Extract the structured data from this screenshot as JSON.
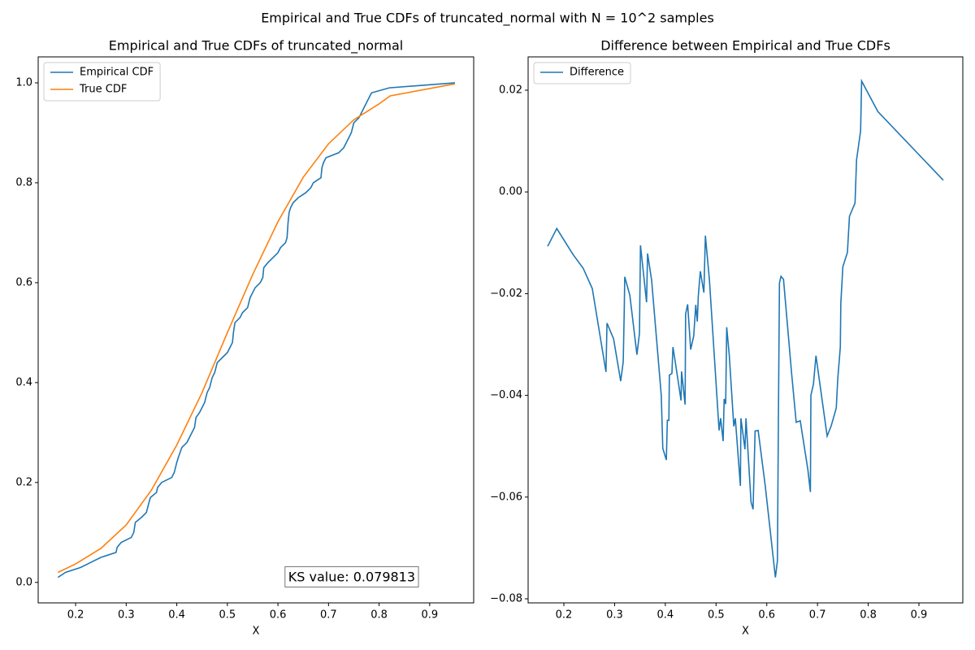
{
  "suptitle": "Empirical and True CDFs of truncated_normal with N = 10^2 samples",
  "chart_data": [
    {
      "type": "line",
      "title": "Empirical and True CDFs of truncated_normal",
      "xlabel": "X",
      "xlim": [
        0.126,
        0.987
      ],
      "xticks": [
        0.2,
        0.3,
        0.4,
        0.5,
        0.6,
        0.7,
        0.8,
        0.9
      ],
      "ylim": [
        -0.041,
        1.052
      ],
      "yticks": [
        {
          "value": 0,
          "label": "0.0"
        },
        0.2,
        0.4,
        0.6,
        0.8,
        {
          "value": 1,
          "label": "1.0"
        }
      ],
      "legend": "upper left",
      "grid": false,
      "annotation": "KS value: 0.079813",
      "series": [
        {
          "name": "Empirical CDF",
          "color": "#1f77b4",
          "x": [
            0.165,
            0.18,
            0.21,
            0.23,
            0.25,
            0.28,
            0.282,
            0.29,
            0.31,
            0.315,
            0.318,
            0.33,
            0.34,
            0.345,
            0.348,
            0.36,
            0.362,
            0.37,
            0.39,
            0.395,
            0.4,
            0.403,
            0.41,
            0.42,
            0.425,
            0.43,
            0.435,
            0.438,
            0.445,
            0.45,
            0.455,
            0.46,
            0.465,
            0.47,
            0.475,
            0.48,
            0.49,
            0.5,
            0.505,
            0.51,
            0.512,
            0.515,
            0.525,
            0.53,
            0.54,
            0.545,
            0.55,
            0.555,
            0.565,
            0.57,
            0.572,
            0.58,
            0.59,
            0.6,
            0.605,
            0.615,
            0.618,
            0.62,
            0.622,
            0.625,
            0.63,
            0.64,
            0.655,
            0.665,
            0.67,
            0.685,
            0.687,
            0.69,
            0.695,
            0.72,
            0.73,
            0.74,
            0.745,
            0.75,
            0.76,
            0.765,
            0.77,
            0.775,
            0.78,
            0.785,
            0.82,
            0.95
          ],
          "values": [
            0.01,
            0.02,
            0.03,
            0.04,
            0.05,
            0.06,
            0.07,
            0.08,
            0.09,
            0.1,
            0.12,
            0.13,
            0.14,
            0.16,
            0.17,
            0.18,
            0.19,
            0.2,
            0.21,
            0.22,
            0.24,
            0.25,
            0.27,
            0.28,
            0.29,
            0.3,
            0.31,
            0.33,
            0.34,
            0.35,
            0.36,
            0.38,
            0.39,
            0.41,
            0.42,
            0.44,
            0.45,
            0.46,
            0.47,
            0.48,
            0.5,
            0.52,
            0.53,
            0.54,
            0.55,
            0.57,
            0.58,
            0.59,
            0.6,
            0.61,
            0.63,
            0.64,
            0.65,
            0.66,
            0.67,
            0.68,
            0.69,
            0.72,
            0.74,
            0.75,
            0.76,
            0.77,
            0.78,
            0.79,
            0.8,
            0.81,
            0.83,
            0.84,
            0.85,
            0.86,
            0.87,
            0.89,
            0.9,
            0.92,
            0.93,
            0.94,
            0.95,
            0.96,
            0.97,
            0.98,
            0.99,
            1.0
          ]
        },
        {
          "name": "True CDF",
          "color": "#ff7f0e",
          "x": [
            0.165,
            0.2,
            0.25,
            0.3,
            0.35,
            0.4,
            0.45,
            0.5,
            0.55,
            0.6,
            0.65,
            0.7,
            0.75,
            0.8,
            0.822,
            0.95
          ],
          "values": [
            0.02,
            0.037,
            0.068,
            0.115,
            0.185,
            0.275,
            0.38,
            0.5,
            0.616,
            0.722,
            0.811,
            0.878,
            0.926,
            0.958,
            0.974,
            0.998
          ]
        }
      ]
    },
    {
      "type": "line",
      "title": "Difference between Empirical and True CDFs",
      "xlabel": "X",
      "xlim": [
        0.1295,
        0.9865
      ],
      "xticks": [
        0.2,
        0.3,
        0.4,
        0.5,
        0.6,
        0.7,
        0.8,
        0.9
      ],
      "ylim": [
        -0.0808,
        0.02655
      ],
      "yticks": [
        {
          "value": -0.08,
          "label": "−0.08"
        },
        {
          "value": -0.06,
          "label": "−0.06"
        },
        {
          "value": -0.04,
          "label": "−0.04"
        },
        {
          "value": -0.02,
          "label": "−0.02"
        },
        {
          "value": 0,
          "label": "0.00"
        },
        0.02
      ],
      "legend": "upper left",
      "grid": false,
      "series": [
        {
          "name": "Difference",
          "color": "#1f77b4",
          "x": [
            0.168,
            0.186,
            0.218,
            0.238,
            0.256,
            0.283,
            0.285,
            0.298,
            0.312,
            0.317,
            0.319,
            0.32,
            0.33,
            0.344,
            0.349,
            0.351,
            0.363,
            0.365,
            0.373,
            0.392,
            0.395,
            0.402,
            0.404,
            0.407,
            0.408,
            0.413,
            0.415,
            0.42,
            0.431,
            0.432,
            0.439,
            0.44,
            0.444,
            0.45,
            0.456,
            0.46,
            0.463,
            0.465,
            0.469,
            0.476,
            0.479,
            0.487,
            0.506,
            0.509,
            0.514,
            0.516,
            0.519,
            0.521,
            0.526,
            0.535,
            0.538,
            0.548,
            0.549,
            0.557,
            0.559,
            0.569,
            0.573,
            0.577,
            0.583,
            0.597,
            0.617,
            0.621,
            0.623,
            0.625,
            0.628,
            0.633,
            0.649,
            0.658,
            0.666,
            0.681,
            0.686,
            0.687,
            0.692,
            0.697,
            0.719,
            0.727,
            0.737,
            0.74,
            0.745,
            0.746,
            0.75,
            0.759,
            0.763,
            0.774,
            0.777,
            0.785,
            0.787,
            0.819,
            0.948
          ],
          "values": [
            -0.0107,
            -0.0072,
            -0.0123,
            -0.015,
            -0.019,
            -0.0354,
            -0.0258,
            -0.0289,
            -0.0372,
            -0.0334,
            -0.0234,
            -0.0167,
            -0.0203,
            -0.032,
            -0.0278,
            -0.0105,
            -0.0217,
            -0.0121,
            -0.0174,
            -0.04,
            -0.0504,
            -0.0527,
            -0.0449,
            -0.0449,
            -0.036,
            -0.0357,
            -0.0305,
            -0.0337,
            -0.041,
            -0.0353,
            -0.0418,
            -0.024,
            -0.0221,
            -0.031,
            -0.0283,
            -0.0222,
            -0.0255,
            -0.0205,
            -0.0156,
            -0.0198,
            -0.0086,
            -0.0174,
            -0.0469,
            -0.0445,
            -0.049,
            -0.0407,
            -0.0417,
            -0.0266,
            -0.032,
            -0.0461,
            -0.0445,
            -0.0578,
            -0.0445,
            -0.0506,
            -0.0445,
            -0.061,
            -0.0624,
            -0.047,
            -0.0469,
            -0.0578,
            -0.0758,
            -0.0725,
            -0.0437,
            -0.0179,
            -0.0166,
            -0.0172,
            -0.0357,
            -0.0453,
            -0.045,
            -0.0546,
            -0.059,
            -0.04,
            -0.0378,
            -0.0322,
            -0.048,
            -0.046,
            -0.0425,
            -0.0367,
            -0.0305,
            -0.0219,
            -0.0147,
            -0.0119,
            -0.0048,
            -0.0022,
            0.0063,
            0.012,
            0.0218,
            0.0158,
            0.0023
          ]
        }
      ]
    }
  ]
}
